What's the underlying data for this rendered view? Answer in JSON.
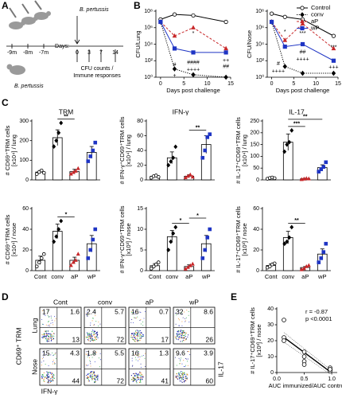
{
  "panels": [
    "A",
    "B",
    "C",
    "D",
    "E"
  ],
  "schematic": {
    "pathogen_labels": [
      "B. pertussis",
      "B. pertussis"
    ],
    "immunization_days": [
      "-9m",
      "-8m",
      "-7m"
    ],
    "days_label": "Days:",
    "days": [
      "0",
      "3",
      "7",
      "14"
    ],
    "readout": [
      "CFU counts /",
      "Immune responses"
    ]
  },
  "chart_data": [
    {
      "type": "line",
      "y_label": "CFU/Lung",
      "x_label": "Days post challenge",
      "log_scale": true,
      "x": [
        0,
        3,
        7,
        14
      ],
      "xlim": [
        -1,
        15
      ],
      "xticks": [
        0,
        5,
        10,
        15
      ],
      "ylim": [
        1,
        100000000
      ],
      "yticks": [
        {
          "value": 1,
          "label": "10⁰"
        },
        {
          "value": 100,
          "label": "10²"
        },
        {
          "value": 10000,
          "label": "10⁴"
        },
        {
          "value": 1000000,
          "label": "10⁶"
        },
        {
          "value": 100000000,
          "label": "10⁸"
        }
      ],
      "series": [
        {
          "color": "#000000",
          "marker": "open-circle",
          "dash": "solid",
          "values": [
            10000000,
            40000000,
            30000000,
            5000000
          ]
        },
        {
          "color": "#000000",
          "marker": "diamond",
          "dash": "dotted",
          "values": [
            5000000,
            10,
            2,
            1
          ]
        },
        {
          "color": "#c8282a",
          "marker": "triangle",
          "dash": "dashed",
          "values": [
            5000000,
            100000,
            1000000,
            3000
          ]
        },
        {
          "color": "#1f35c4",
          "marker": "square",
          "dash": "solid",
          "values": [
            5000000,
            3000,
            1000,
            1000
          ]
        }
      ],
      "annotations": [
        {
          "text": "*",
          "x": 7,
          "y": 200000
        },
        {
          "text": "####",
          "x": 7,
          "y": 60
        },
        {
          "text": "++++",
          "x": 7,
          "y": 8
        },
        {
          "text": "#",
          "x": 3,
          "y": 30
        },
        {
          "text": "+",
          "x": 3,
          "y": 1.5
        },
        {
          "text": "++",
          "x": 14,
          "y": 100
        },
        {
          "text": "##",
          "x": 14,
          "y": 20
        }
      ]
    },
    {
      "type": "line",
      "y_label": "CFU/Nose",
      "x_label": "Days post challenge",
      "log_scale": true,
      "legend": "upper right",
      "x": [
        0,
        3,
        7,
        14
      ],
      "xlim": [
        -1,
        15
      ],
      "xticks": [
        0,
        5,
        10,
        15
      ],
      "ylim": [
        1,
        100000000
      ],
      "yticks": [
        {
          "value": 1,
          "label": "10⁰"
        },
        {
          "value": 100,
          "label": "10²"
        },
        {
          "value": 10000,
          "label": "10⁴"
        },
        {
          "value": 1000000,
          "label": "10⁶"
        },
        {
          "value": 100000000,
          "label": "10⁸"
        }
      ],
      "series": [
        {
          "name": "Control",
          "color": "#000000",
          "marker": "open-circle",
          "dash": "solid",
          "values": [
            50000000,
            20000000,
            10000000,
            100000
          ]
        },
        {
          "name": "conv",
          "color": "#000000",
          "marker": "diamond",
          "dash": "dotted",
          "values": [
            5000000,
            20,
            3,
            3
          ]
        },
        {
          "name": "aP",
          "color": "#c8282a",
          "marker": "triangle",
          "dash": "dashed",
          "values": [
            5000000,
            30000,
            3000000,
            3000
          ]
        },
        {
          "name": "wP",
          "color": "#1f35c4",
          "marker": "square",
          "dash": "solid",
          "values": [
            5000000,
            5000,
            10000,
            100
          ]
        }
      ],
      "annotations": [
        {
          "text": "*",
          "x": 3,
          "y": 300000
        },
        {
          "text": "***",
          "x": 7,
          "y": 200000
        },
        {
          "text": "##",
          "x": 7,
          "y": 1000
        },
        {
          "text": "++++",
          "x": 7,
          "y": 150
        },
        {
          "text": "#",
          "x": 1.5,
          "y": 40
        },
        {
          "text": "++++",
          "x": 1.5,
          "y": 5
        },
        {
          "text": "***",
          "x": 14,
          "y": 4000
        },
        {
          "text": "+++",
          "x": 14,
          "y": 15
        }
      ]
    },
    {
      "type": "dotbar",
      "title": "TRM",
      "y_label": [
        "# CD69⁺TRM cells",
        "[x10⁴] / lung"
      ],
      "categories": [
        null,
        null,
        null,
        null
      ],
      "ylim": [
        0,
        300
      ],
      "yticks": [
        0,
        100,
        200,
        300
      ],
      "values": [
        40,
        215,
        42,
        140
      ],
      "errors": [
        8,
        40,
        12,
        30
      ],
      "points": [
        [
          30,
          40,
          48,
          36
        ],
        [
          170,
          200,
          240,
          290
        ],
        [
          30,
          38,
          45,
          58
        ],
        [
          95,
          120,
          150,
          190
        ]
      ],
      "markers": [
        "open-circle",
        "diamond",
        "triangle",
        "square"
      ],
      "colors": [
        "#000000",
        "#000000",
        "#c8282a",
        "#1f35c4"
      ],
      "brackets": [
        {
          "from": 1,
          "to": 2,
          "text": "**"
        }
      ]
    },
    {
      "type": "dotbar",
      "title": "IFN-γ",
      "y_label": [
        "# IFN-γ⁺CD69⁺TRM cells",
        "[x10⁴] / lung"
      ],
      "categories": [
        null,
        null,
        null,
        null
      ],
      "ylim": [
        0,
        80
      ],
      "yticks": [
        0,
        20,
        40,
        60,
        80
      ],
      "values": [
        5,
        30,
        5,
        48
      ],
      "errors": [
        1.5,
        8,
        2,
        12
      ],
      "points": [
        [
          3,
          5,
          6,
          4
        ],
        [
          20,
          25,
          30,
          45
        ],
        [
          3,
          5,
          7,
          4
        ],
        [
          30,
          40,
          58,
          62
        ]
      ],
      "markers": [
        "open-circle",
        "diamond",
        "triangle",
        "square"
      ],
      "colors": [
        "#000000",
        "#000000",
        "#c8282a",
        "#1f35c4"
      ],
      "brackets": [
        {
          "from": 2,
          "to": 3,
          "text": "**"
        }
      ]
    },
    {
      "type": "dotbar",
      "title": "IL-17",
      "y_label": [
        "# IL-17⁺CD69⁺TRM cells",
        "[x10⁴] / lung"
      ],
      "categories": [
        null,
        null,
        null,
        null
      ],
      "ylim": [
        0,
        250
      ],
      "yticks": [
        0,
        50,
        100,
        150,
        200,
        250
      ],
      "values": [
        8,
        160,
        5,
        52
      ],
      "errors": [
        2,
        35,
        2,
        12
      ],
      "points": [
        [
          5,
          8,
          10,
          7
        ],
        [
          120,
          150,
          160,
          210
        ],
        [
          2,
          4,
          6,
          5
        ],
        [
          35,
          45,
          55,
          75
        ]
      ],
      "markers": [
        "open-circle",
        "diamond",
        "triangle",
        "square"
      ],
      "colors": [
        "#000000",
        "#000000",
        "#c8282a",
        "#1f35c4"
      ],
      "brackets": [
        {
          "from": 1,
          "to": 2,
          "text": "***"
        },
        {
          "from": 1,
          "to": 3,
          "text": "**"
        }
      ]
    },
    {
      "type": "dotbar",
      "y_label": [
        "# CD69⁺TRM cells",
        "[x10⁴] / nose"
      ],
      "categories": [
        "Cont",
        "conv",
        "aP",
        "wP"
      ],
      "ylim": [
        0,
        60
      ],
      "yticks": [
        0,
        20,
        40,
        60
      ],
      "values": [
        10,
        38,
        10,
        26
      ],
      "errors": [
        4,
        7,
        3,
        8
      ],
      "points": [
        [
          4,
          8,
          12,
          16
        ],
        [
          28,
          33,
          40,
          48
        ],
        [
          5,
          8,
          10,
          16
        ],
        [
          12,
          20,
          30,
          40
        ]
      ],
      "markers": [
        "open-circle",
        "diamond",
        "triangle",
        "square"
      ],
      "colors": [
        "#000000",
        "#000000",
        "#c8282a",
        "#1f35c4"
      ],
      "brackets": [
        {
          "from": 1,
          "to": 2,
          "text": "*"
        }
      ]
    },
    {
      "type": "dotbar",
      "y_label": [
        "# IFN-γ⁺CD69⁺TRM cells",
        "[x10³] / nose"
      ],
      "categories": [
        "Cont",
        "conv",
        "aP",
        "wP"
      ],
      "ylim": [
        0,
        15
      ],
      "yticks": [
        0,
        5,
        10,
        15
      ],
      "values": [
        1.2,
        8.2,
        1,
        6.5
      ],
      "errors": [
        0.5,
        1.5,
        0.4,
        2
      ],
      "points": [
        [
          0.5,
          1,
          1.5,
          2
        ],
        [
          5,
          7,
          9,
          10.5
        ],
        [
          0.4,
          0.8,
          1.2,
          1.6
        ],
        [
          3,
          5,
          8,
          10
        ]
      ],
      "markers": [
        "open-circle",
        "diamond",
        "triangle",
        "square"
      ],
      "colors": [
        "#000000",
        "#000000",
        "#c8282a",
        "#1f35c4"
      ],
      "brackets": [
        {
          "from": 1,
          "to": 2,
          "text": "*"
        },
        {
          "from": 2,
          "to": 3,
          "text": "*"
        }
      ]
    },
    {
      "type": "dotbar",
      "y_label": [
        "# IL-17⁺CD69⁺TRM cells",
        "[x10³] / nose"
      ],
      "categories": [
        "Cont",
        "conv",
        "aP",
        "wP"
      ],
      "ylim": [
        0,
        60
      ],
      "yticks": [
        0,
        20,
        40,
        60
      ],
      "values": [
        5,
        32,
        3,
        16
      ],
      "errors": [
        1.5,
        6,
        1,
        5
      ],
      "points": [
        [
          3,
          4,
          6,
          7
        ],
        [
          26,
          28,
          32,
          42
        ],
        [
          1,
          2,
          4,
          5
        ],
        [
          8,
          12,
          18,
          26
        ]
      ],
      "markers": [
        "open-circle",
        "diamond",
        "triangle",
        "square"
      ],
      "colors": [
        "#000000",
        "#000000",
        "#c8282a",
        "#1f35c4"
      ],
      "brackets": [
        {
          "from": 1,
          "to": 2,
          "text": "**"
        }
      ]
    },
    {
      "type": "flow",
      "y_label": "CD69⁺ TRM",
      "x_label": "IFN-γ",
      "y2_label": "IL-17",
      "columns": [
        "Cont",
        "conv",
        "aP",
        "wP"
      ],
      "rows": [
        "Lung",
        "Nose"
      ],
      "quadrants": [
        [
          [
            17,
            1.6,
            13
          ],
          [
            2.4,
            5.7,
            72
          ],
          [
            16,
            0.7,
            17
          ],
          [
            32,
            8.6,
            26
          ]
        ],
        [
          [
            15,
            4.3,
            44
          ],
          [
            1.8,
            5.5,
            72
          ],
          [
            16,
            1.3,
            41
          ],
          [
            9.6,
            3.9,
            60
          ]
        ]
      ]
    },
    {
      "type": "scatter",
      "y_label": [
        "# IL-17⁺CD69⁺TRM cells",
        "[x10³] / nose"
      ],
      "x_label": "AUC immunized/AUC control",
      "x": [
        0.13,
        0.13,
        0.13,
        0.5,
        0.5,
        0.5,
        0.5,
        0.97,
        0.97,
        0.97,
        0.97,
        0.97
      ],
      "values": [
        33,
        22,
        20,
        13,
        10,
        7,
        5,
        3,
        2,
        1.5,
        1,
        2
      ],
      "xlim": [
        0,
        1.1
      ],
      "xticks": [
        {
          "value": 0,
          "label": "0.0"
        },
        {
          "value": 0.5,
          "label": "0.5"
        },
        {
          "value": 1,
          "label": "1.0"
        }
      ],
      "ylim": [
        0,
        40
      ],
      "yticks": [
        0,
        10,
        20,
        30,
        40
      ],
      "fit": true,
      "annotations": [
        "r = -0.87",
        "p <0.0001"
      ]
    }
  ]
}
